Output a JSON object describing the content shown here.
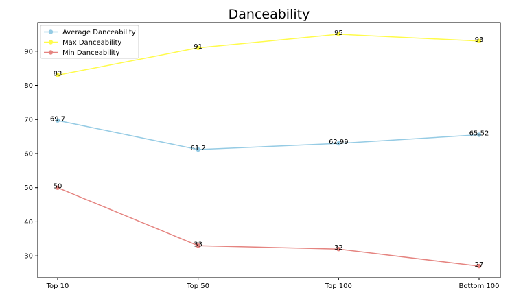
{
  "chart_data": {
    "type": "line",
    "title": "Danceability",
    "xlabel": "",
    "ylabel": "",
    "categories": [
      "Top 10",
      "Top 50",
      "Top 100",
      "Bottom 100"
    ],
    "ylim": [
      23.6,
      98.4
    ],
    "yticks": [
      30,
      40,
      50,
      60,
      70,
      80,
      90
    ],
    "grid": false,
    "legend_position": "top-left",
    "series": [
      {
        "name": "Average Danceability",
        "values": [
          69.7,
          61.2,
          62.99,
          65.52
        ],
        "labels": [
          "69.7",
          "61.2",
          "62.99",
          "65.52"
        ],
        "color": "#95cbe4"
      },
      {
        "name": "Max Danceability",
        "values": [
          83,
          91,
          95,
          93
        ],
        "labels": [
          "83",
          "91",
          "95",
          "93"
        ],
        "color": "#fffb4a"
      },
      {
        "name": "Min Danceability",
        "values": [
          50,
          33,
          32,
          27
        ],
        "labels": [
          "50",
          "33",
          "32",
          "27"
        ],
        "color": "#e58480"
      }
    ]
  }
}
